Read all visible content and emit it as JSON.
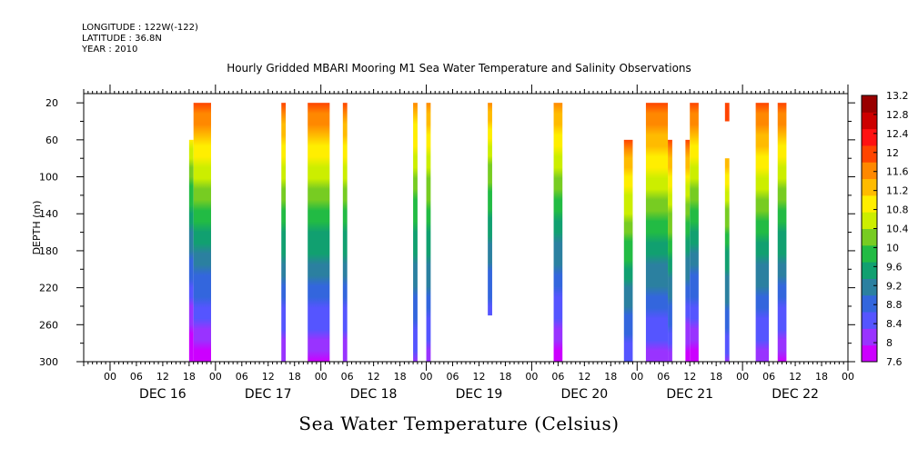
{
  "meta": {
    "longitude": "LONGITUDE : 122W(-122)",
    "latitude": "LATITUDE : 36.8N",
    "year": "YEAR : 2010"
  },
  "chart_data": {
    "type": "heatmap",
    "title": "Hourly Gridded MBARI Mooring M1 Sea Water Temperature and Salinity Observations",
    "xlabel": "Sea Water Temperature (Celsius)",
    "ylabel": "DEPTH (m)",
    "x_unit": "hours since DEC 16 00:00",
    "xlim": [
      -6,
      168
    ],
    "ylim": [
      300,
      10
    ],
    "y_ticks": [
      20,
      60,
      100,
      140,
      180,
      220,
      260,
      300
    ],
    "hour_tick_labels": [
      "00",
      "06",
      "12",
      "18"
    ],
    "day_labels": [
      "DEC 16",
      "DEC 17",
      "DEC 18",
      "DEC 19",
      "DEC 20",
      "DEC 21",
      "DEC 22"
    ],
    "colorbar": {
      "labels": [
        "13.2",
        "12.8",
        "12.4",
        "12",
        "11.6",
        "11.2",
        "10.8",
        "10.4",
        "10",
        "9.6",
        "9.2",
        "8.8",
        "8.4",
        "8",
        "7.6"
      ],
      "min": 7.6,
      "max": 13.2,
      "colors": [
        "#cc00ff",
        "#9933ff",
        "#5555ff",
        "#3366dd",
        "#2b80a0",
        "#11a070",
        "#22bb44",
        "#77cc22",
        "#ccee00",
        "#ffee00",
        "#ffbb00",
        "#ff8800",
        "#ff4400",
        "#ff1111",
        "#cc0000",
        "#990000"
      ]
    },
    "columns": [
      {
        "start": 18,
        "end": 19,
        "top": 60,
        "t_top": 11.2,
        "t_bottom": 7.6
      },
      {
        "start": 19,
        "end": 23,
        "top": 20,
        "t_top": 12.4,
        "t_bottom": 7.8
      },
      {
        "start": 39,
        "end": 40,
        "top": 20,
        "t_top": 12.2,
        "t_bottom": 8.0
      },
      {
        "start": 45,
        "end": 50,
        "top": 20,
        "t_top": 12.4,
        "t_bottom": 7.9
      },
      {
        "start": 53,
        "end": 54,
        "top": 20,
        "t_top": 12.2,
        "t_bottom": 8.0
      },
      {
        "start": 69,
        "end": 70,
        "top": 20,
        "t_top": 11.8,
        "t_bottom": 8.3
      },
      {
        "start": 72,
        "end": 73,
        "top": 20,
        "t_top": 12.0,
        "t_bottom": 8.2
      },
      {
        "start": 86,
        "end": 87,
        "top": 20,
        "bottom": 250,
        "t_top": 11.8,
        "t_bottom": 8.5
      },
      {
        "start": 101,
        "end": 103,
        "top": 20,
        "t_top": 12.0,
        "t_bottom": 7.8
      },
      {
        "start": 117,
        "end": 119,
        "top": 60,
        "t_top": 12.2,
        "t_bottom": 8.4
      },
      {
        "start": 122,
        "end": 127,
        "top": 20,
        "t_top": 12.4,
        "t_bottom": 8.1
      },
      {
        "start": 127,
        "end": 128,
        "top": 60,
        "t_top": 12.2,
        "t_bottom": 8.2
      },
      {
        "start": 131,
        "end": 132,
        "top": 60,
        "t_top": 12.2,
        "t_bottom": 7.7
      },
      {
        "start": 132,
        "end": 134,
        "top": 20,
        "t_top": 12.4,
        "t_bottom": 7.8
      },
      {
        "start": 140,
        "end": 141,
        "top": 20,
        "bottom": 40,
        "t_top": 12.4,
        "t_bottom": 12.3
      },
      {
        "start": 140,
        "end": 141,
        "top": 80,
        "t_top": 11.6,
        "t_bottom": 8.3
      },
      {
        "start": 147,
        "end": 150,
        "top": 20,
        "t_top": 12.4,
        "t_bottom": 8.1
      },
      {
        "start": 152,
        "end": 154,
        "top": 20,
        "t_top": 12.4,
        "t_bottom": 7.9
      }
    ]
  }
}
